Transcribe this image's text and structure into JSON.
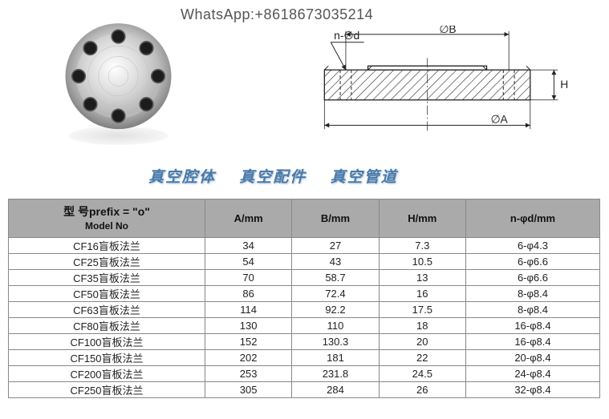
{
  "header": {
    "whatsapp": "WhatsApp:+8618673035214"
  },
  "drawing": {
    "labels": {
      "nphid": "n-∅d",
      "phiB": "∅B",
      "H": "H",
      "phiA": "∅A"
    },
    "colors": {
      "line": "#222222",
      "hatch": "#222222",
      "text": "#222222"
    }
  },
  "flange": {
    "outer_color": "#7a7a7a",
    "mid_color": "#bfbfbf",
    "light_color": "#e8e8e8",
    "hole_color": "#1c1c1c",
    "hole_ring": "#555555",
    "holes": 8,
    "outer_r": 80,
    "inner_r": 64,
    "hole_r": 9,
    "bolt_circle_r": 60
  },
  "caption": {
    "a": "真空腔体",
    "b": "真空配件",
    "c": "真空管道",
    "color": "#497aa8"
  },
  "table": {
    "header": {
      "model_top": "型        号prefix = \"o\"",
      "model_bottom": "Model  No",
      "A": "A/mm",
      "B": "B/mm",
      "H": "H/mm",
      "N": "n-φd/mm"
    },
    "header_bg": "#aaaaaa",
    "border_color": "#888888",
    "rows": [
      {
        "model": "CF16盲板法兰",
        "A": "34",
        "B": "27",
        "H": "7.3",
        "N": "6-φ4.3"
      },
      {
        "model": "CF25盲板法兰",
        "A": "54",
        "B": "43",
        "H": "10.5",
        "N": "6-φ6.6"
      },
      {
        "model": "CF35盲板法兰",
        "A": "70",
        "B": "58.7",
        "H": "13",
        "N": "6-φ6.6"
      },
      {
        "model": "CF50盲板法兰",
        "A": "86",
        "B": "72.4",
        "H": "16",
        "N": "8-φ8.4"
      },
      {
        "model": "CF63盲板法兰",
        "A": "114",
        "B": "92.2",
        "H": "17.5",
        "N": "8-φ8.4"
      },
      {
        "model": "CF80盲板法兰",
        "A": "130",
        "B": "110",
        "H": "18",
        "N": "16-φ8.4"
      },
      {
        "model": "CF100盲板法兰",
        "A": "152",
        "B": "130.3",
        "H": "20",
        "N": "16-φ8.4"
      },
      {
        "model": "CF150盲板法兰",
        "A": "202",
        "B": "181",
        "H": "22",
        "N": "20-φ8.4"
      },
      {
        "model": "CF200盲板法兰",
        "A": "253",
        "B": "231.8",
        "H": "24.5",
        "N": "24-φ8.4"
      },
      {
        "model": "CF250盲板法兰",
        "A": "305",
        "B": "284",
        "H": "26",
        "N": "32-φ8.4"
      }
    ]
  }
}
